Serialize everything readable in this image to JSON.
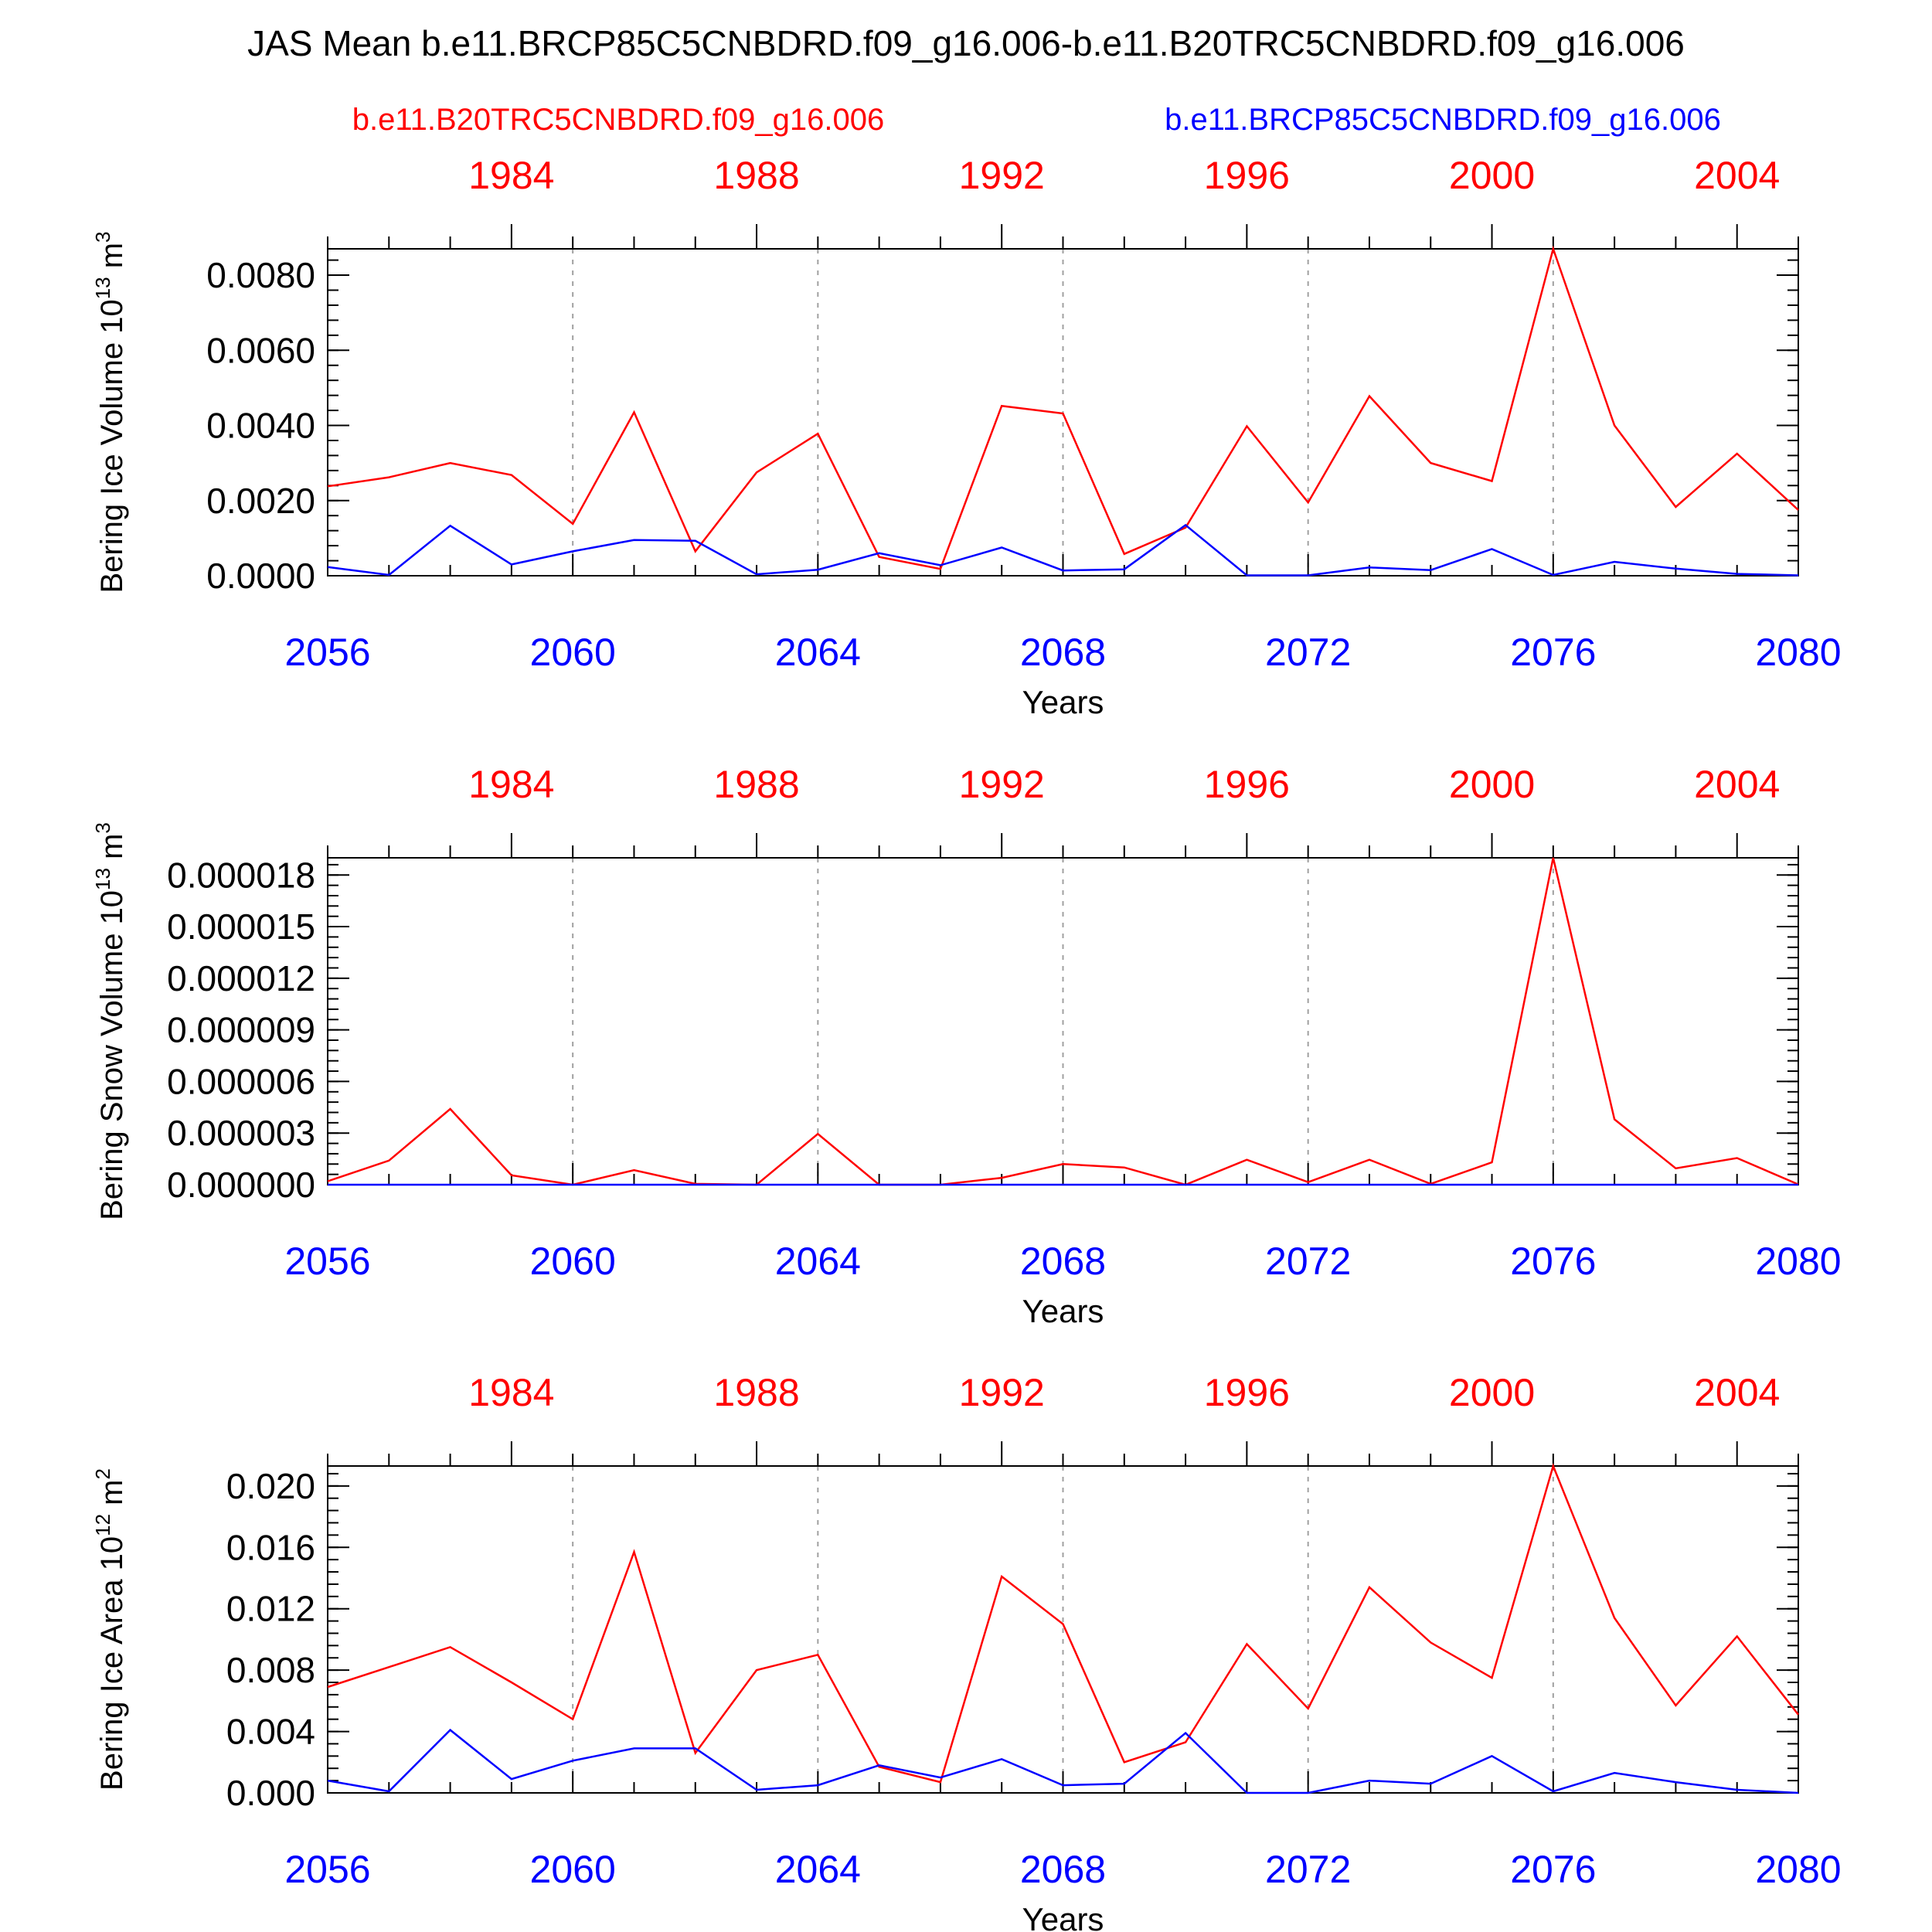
{
  "title": "JAS Mean b.e11.BRCP85C5CNBDRD.f09_g16.006-b.e11.B20TRC5CNBDRD.f09_g16.006",
  "legend": {
    "red_label": "b.e11.B20TRC5CNBDRD.f09_g16.006",
    "blue_label": "b.e11.BRCP85C5CNBDRD.f09_g16.006"
  },
  "colors": {
    "red": "#ff0000",
    "blue": "#0000ff",
    "axis": "#000000",
    "grid": "#a0a0a0"
  },
  "x_bottom": {
    "label": "Years",
    "range": [
      2056,
      2080
    ],
    "ticks": [
      "2056",
      "2060",
      "2064",
      "2068",
      "2072",
      "2076",
      "2080"
    ]
  },
  "x_top": {
    "range": [
      1981,
      2005
    ],
    "ticks": [
      "1984",
      "1988",
      "1992",
      "1996",
      "2000",
      "2004"
    ]
  },
  "chart_data": [
    {
      "type": "line",
      "ylabel": "Bering Ice Volume 10",
      "ylabel_exp": "13",
      "ylabel_unit": "m",
      "ylabel_unit_exp": "3",
      "ylim": [
        0,
        0.0087
      ],
      "yticks": [
        "0.0000",
        "0.0020",
        "0.0040",
        "0.0060",
        "0.0080"
      ],
      "ytick_values": [
        0,
        0.002,
        0.004,
        0.006,
        0.008
      ],
      "x": [
        2056,
        2057,
        2058,
        2059,
        2060,
        2061,
        2062,
        2063,
        2064,
        2065,
        2066,
        2067,
        2068,
        2069,
        2070,
        2071,
        2072,
        2073,
        2074,
        2075,
        2076,
        2077,
        2078,
        2079,
        2080
      ],
      "series": [
        {
          "name": "b.e11.B20TRC5CNBDRD.f09_g16.006",
          "color": "red",
          "values": [
            0.00238,
            0.00262,
            0.003,
            0.00268,
            0.00138,
            0.00435,
            0.00065,
            0.00275,
            0.00378,
            0.0005,
            0.00018,
            0.00452,
            0.00432,
            0.00058,
            0.00128,
            0.00398,
            0.00195,
            0.00478,
            0.003,
            0.00252,
            0.0087,
            0.004,
            0.00183,
            0.00325,
            0.00175
          ]
        },
        {
          "name": "b.e11.BRCP85C5CNBDRD.f09_g16.006",
          "color": "blue",
          "values": [
            0.00023,
            2e-05,
            0.00133,
            0.0003,
            0.00065,
            0.00095,
            0.00093,
            4e-05,
            0.00016,
            0.0006,
            0.00028,
            0.00075,
            0.00014,
            0.00017,
            0.00135,
            1e-05,
            1e-05,
            0.00022,
            0.00015,
            0.00071,
            2e-05,
            0.00037,
            0.00019,
            5e-05,
            1e-05
          ]
        }
      ]
    },
    {
      "type": "line",
      "ylabel": "Bering Snow Volume 10",
      "ylabel_exp": "13",
      "ylabel_unit": "m",
      "ylabel_unit_exp": "3",
      "ylim": [
        0,
        1.9e-05
      ],
      "yticks": [
        "0.000000",
        "0.000003",
        "0.000006",
        "0.000009",
        "0.000012",
        "0.000015",
        "0.000018"
      ],
      "ytick_values": [
        0,
        3e-06,
        6e-06,
        9e-06,
        1.2e-05,
        1.5e-05,
        1.8e-05
      ],
      "x": [
        2056,
        2057,
        2058,
        2059,
        2060,
        2061,
        2062,
        2063,
        2064,
        2065,
        2066,
        2067,
        2068,
        2069,
        2070,
        2071,
        2072,
        2073,
        2074,
        2075,
        2076,
        2077,
        2078,
        2079,
        2080
      ],
      "series": [
        {
          "name": "b.e11.B20TRC5CNBDRD.f09_g16.006",
          "color": "red",
          "values": [
            2e-07,
            1.4e-06,
            4.4e-06,
            5.5e-07,
            0.0,
            8.5e-07,
            5e-08,
            0.0,
            2.95e-06,
            0.0,
            0.0,
            4e-07,
            1.2e-06,
            1e-06,
            0.0,
            1.45e-06,
            1.5e-07,
            1.45e-06,
            5e-08,
            1.3e-06,
            1.9e-05,
            3.8e-06,
            9.5e-07,
            1.55e-06,
            2e-08
          ]
        },
        {
          "name": "b.e11.BRCP85C5CNBDRD.f09_g16.006",
          "color": "blue",
          "values": [
            0,
            0,
            0,
            0,
            0,
            0,
            0,
            0,
            0,
            0,
            0,
            0,
            0,
            0,
            0,
            0,
            0,
            0,
            0,
            0,
            0,
            0,
            0,
            0,
            0
          ]
        }
      ]
    },
    {
      "type": "line",
      "ylabel": "Bering Ice Area 10",
      "ylabel_exp": "12",
      "ylabel_unit": "m",
      "ylabel_unit_exp": "2",
      "ylim": [
        0,
        0.0213
      ],
      "yticks": [
        "0.000",
        "0.004",
        "0.008",
        "0.012",
        "0.016",
        "0.020"
      ],
      "ytick_values": [
        0,
        0.004,
        0.008,
        0.012,
        0.016,
        0.02
      ],
      "x": [
        2056,
        2057,
        2058,
        2059,
        2060,
        2061,
        2062,
        2063,
        2064,
        2065,
        2066,
        2067,
        2068,
        2069,
        2070,
        2071,
        2072,
        2073,
        2074,
        2075,
        2076,
        2077,
        2078,
        2079,
        2080
      ],
      "series": [
        {
          "name": "b.e11.B20TRC5CNBDRD.f09_g16.006",
          "color": "red",
          "values": [
            0.0069,
            0.0082,
            0.0095,
            0.0072,
            0.0048,
            0.0157,
            0.0026,
            0.008,
            0.009,
            0.0017,
            0.0007,
            0.0141,
            0.011,
            0.002,
            0.0033,
            0.0097,
            0.0055,
            0.0134,
            0.0098,
            0.0075,
            0.0213,
            0.0114,
            0.0057,
            0.0102,
            0.0051
          ]
        },
        {
          "name": "b.e11.BRCP85C5CNBDRD.f09_g16.006",
          "color": "blue",
          "values": [
            0.0008,
            0.0001,
            0.0041,
            0.0009,
            0.0021,
            0.0029,
            0.0029,
            0.0002,
            0.0005,
            0.0018,
            0.001,
            0.0022,
            0.0005,
            0.0006,
            0.0039,
            0.0,
            0.0,
            0.0008,
            0.0006,
            0.0024,
            0.0001,
            0.0013,
            0.0007,
            0.0002,
            0.0
          ]
        }
      ]
    }
  ]
}
